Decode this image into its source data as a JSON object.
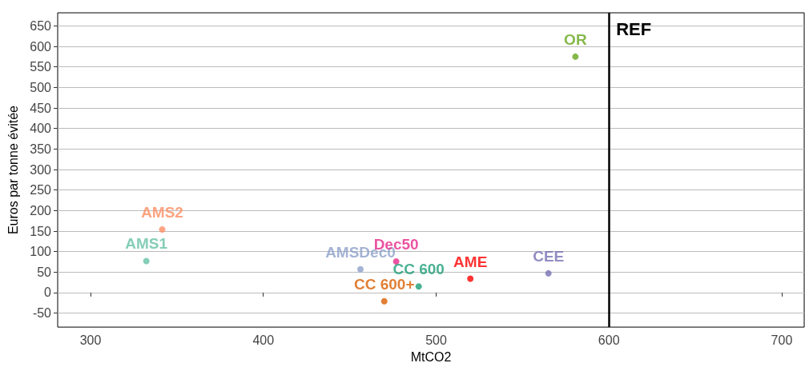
{
  "chart_data": {
    "type": "scatter",
    "xlabel": "MtCO2",
    "ylabel": "Euros par tonne évitée",
    "xlim": [
      281,
      713
    ],
    "xticks": [
      300,
      400,
      500,
      600,
      700
    ],
    "ylim": [
      -84,
      682
    ],
    "yticks": [
      -50,
      0,
      50,
      100,
      150,
      200,
      250,
      300,
      350,
      400,
      450,
      500,
      550,
      600,
      650
    ],
    "grid": "y",
    "marker": "circle",
    "legend": false,
    "ref_lines": [
      {
        "axis": "x",
        "value": 600,
        "label": "REF",
        "color": "#000000"
      }
    ],
    "series": [
      {
        "name": "AMS1",
        "color": "#66c2a5",
        "x": [
          332.3
        ],
        "values": [
          77
        ]
      },
      {
        "name": "AMS2",
        "color": "#fc8d62",
        "x": [
          341.5
        ],
        "values": [
          154
        ]
      },
      {
        "name": "AMSDec0",
        "color": "#8da0cb",
        "x": [
          456.2
        ],
        "values": [
          57
        ]
      },
      {
        "name": "Dec50",
        "color": "#e7298a",
        "x": [
          476.9
        ],
        "values": [
          76
        ]
      },
      {
        "name": "CC 600",
        "color": "#1b9e77",
        "x": [
          489.9
        ],
        "values": [
          15
        ]
      },
      {
        "name": "CC 600+",
        "color": "#d95f02",
        "x": [
          470
        ],
        "values": [
          -21
        ]
      },
      {
        "name": "AME",
        "color": "#ff0000",
        "x": [
          519.8
        ],
        "values": [
          34
        ]
      },
      {
        "name": "CEE",
        "color": "#7570b3",
        "x": [
          565
        ],
        "values": [
          47
        ]
      },
      {
        "name": "OR",
        "color": "#66a61e",
        "x": [
          580.6
        ],
        "values": [
          575
        ]
      }
    ]
  }
}
